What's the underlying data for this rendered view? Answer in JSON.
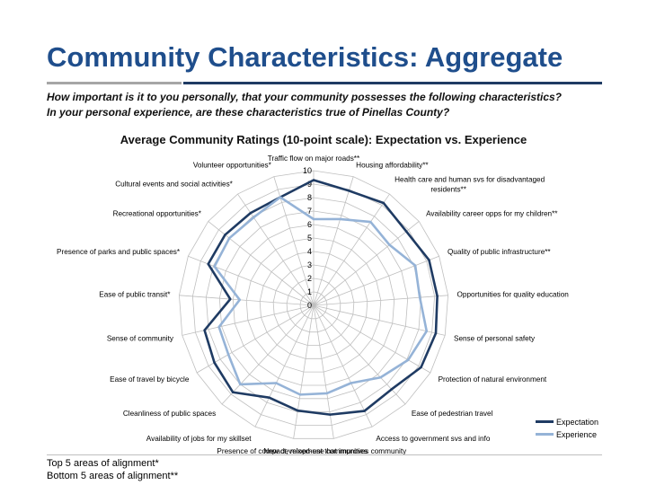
{
  "slide": {
    "title": "Community Characteristics: Aggregate",
    "question_line1": "How important is it to you personally, that your community possesses the following characteristics?",
    "question_line2": "In your personal experience, are these characteristics true of Pinellas County?"
  },
  "footnotes": [
    "Top 5 areas of alignment*",
    "Bottom 5 areas of alignment**"
  ],
  "colors": {
    "title": "#1f4e8c",
    "expectation": "#1f3b63",
    "experience": "#95b3d7",
    "grid": "#bfbfbf"
  },
  "chart_data": {
    "type": "radar",
    "title": "Average Community Ratings (10-point scale): Expectation vs. Experience",
    "categories": [
      "Traffic flow on major roads**",
      "Housing affordability**",
      "Health care and human svs for disadvantaged residents**",
      "Availability career opps for my children**",
      "Quality of public infrastructure**",
      "Opportunities for quality education",
      "Sense of personal safety",
      "Protection of natural environment",
      "Ease of pedestrian travel",
      "Access to government svs and info",
      "New development that improves community",
      "Presence of compact, mixed-use communities",
      "Availability of jobs for my skillset",
      "Cleanliness of public spaces",
      "Ease of travel by bicycle",
      "Sense of community",
      "Ease of public transit*",
      "Presence of parks and public spaces*",
      "Recreational opportunities*",
      "Cultural events and social activities*",
      "Volunteer opportunities*"
    ],
    "series": [
      {
        "name": "Expectation",
        "values": [
          9.3,
          8.9,
          9.2,
          8.8,
          9.2,
          9.2,
          9.3,
          9.2,
          8.5,
          8.7,
          8.2,
          7.9,
          7.6,
          8.8,
          8.5,
          8.3,
          6.2,
          8.4,
          8.4,
          8.3,
          8.4
        ]
      },
      {
        "name": "Experience",
        "values": [
          6.4,
          6.7,
          7.5,
          7.2,
          8.1,
          7.9,
          8.6,
          8.1,
          7.3,
          6.4,
          6.6,
          6.7,
          6.4,
          8.0,
          7.3,
          7.2,
          5.5,
          7.9,
          8.0,
          7.9,
          8.4
        ]
      }
    ],
    "rlim": [
      0,
      10
    ],
    "rticks": [
      "0",
      "1",
      "2",
      "3",
      "4",
      "5",
      "6",
      "7",
      "8",
      "9",
      "10"
    ],
    "legend": "bottom-right",
    "grid": true
  }
}
